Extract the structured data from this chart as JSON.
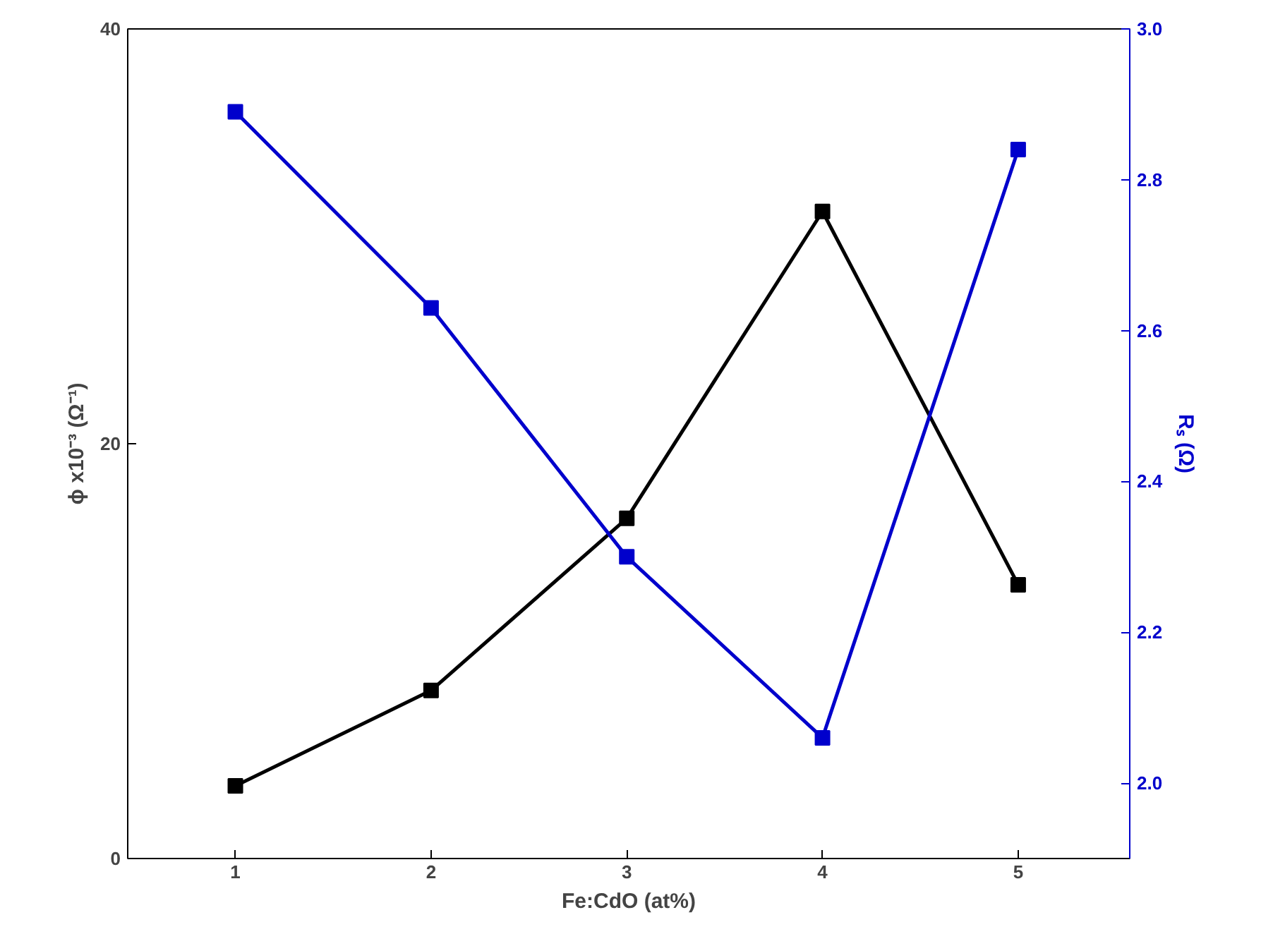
{
  "chart_data": {
    "type": "line",
    "xlabel": "Fe:CdO (at%)",
    "ylabel": "ϕ x10⁻³ (Ω⁻¹)",
    "y2label": "Rₛ (Ω)",
    "x": [
      1,
      2,
      3,
      4,
      5
    ],
    "series": [
      {
        "color": "#000000",
        "values": [
          3.5,
          8.1,
          16.4,
          31.2,
          13.2
        ]
      },
      {
        "color": "#0000cc",
        "axis": "y2",
        "values": [
          2.89,
          2.63,
          2.3,
          2.06,
          2.84
        ]
      }
    ],
    "xlim": [
      0.45,
      5.57
    ],
    "xticks": [
      1,
      2,
      3,
      4,
      5
    ],
    "ylim": [
      0,
      40
    ],
    "yticks": [
      0,
      20,
      40
    ],
    "y2lim": [
      1.9,
      3.0
    ],
    "y2ticks": [
      {
        "value": 2,
        "label": "2.0"
      },
      {
        "value": 2.2,
        "label": "2.2"
      },
      {
        "value": 2.4,
        "label": "2.4"
      },
      {
        "value": 2.6,
        "label": "2.6"
      },
      {
        "value": 2.8,
        "label": "2.8"
      },
      {
        "value": 3,
        "label": "3.0"
      }
    ],
    "marker": "square",
    "grid": false
  }
}
